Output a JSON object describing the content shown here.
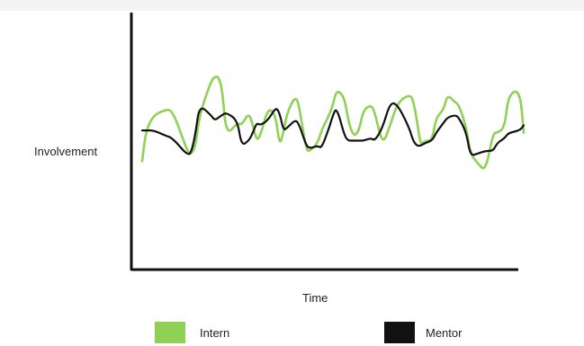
{
  "chart_data": {
    "type": "line",
    "title": "",
    "xlabel": "Time",
    "ylabel": "Involvement",
    "xlim": [
      0,
      100
    ],
    "ylim": [
      0,
      100
    ],
    "x_ticks": false,
    "y_ticks": false,
    "grid": false,
    "legend_position": "bottom",
    "x": [
      0,
      1,
      3,
      6,
      8,
      12,
      13,
      14,
      15,
      18,
      19,
      20,
      21,
      22,
      25,
      26,
      28,
      29,
      30,
      31,
      33,
      35,
      36,
      37,
      38,
      40,
      41,
      43,
      44,
      46,
      47,
      49,
      50,
      51,
      53,
      54,
      55,
      56,
      57,
      58,
      60,
      61,
      63,
      65,
      67,
      70,
      71,
      72,
      73,
      74,
      76,
      77,
      79,
      80,
      82,
      83,
      85,
      86,
      88,
      90,
      92,
      93,
      95,
      96,
      99,
      100
    ],
    "series": [
      {
        "name": "Intern",
        "color": "#8fd154",
        "values": [
          42,
          54,
          60,
          62,
          62,
          45,
          45,
          48,
          60,
          73,
          75,
          75,
          70,
          52,
          57,
          56,
          61,
          56,
          50,
          52,
          63,
          60,
          48,
          53,
          61,
          67,
          65,
          46,
          46,
          49,
          54,
          60,
          64,
          70,
          67,
          58,
          53,
          52,
          55,
          62,
          64,
          61,
          48,
          56,
          65,
          68,
          66,
          58,
          48,
          50,
          50,
          59,
          62,
          68,
          65,
          64,
          55,
          45,
          41,
          38,
          53,
          53,
          55,
          68,
          70,
          53
        ]
      },
      {
        "name": "Mentor",
        "color": "#111111",
        "values": [
          54,
          54,
          54,
          52,
          51,
          44,
          46,
          53,
          64,
          60,
          58,
          59,
          60,
          61,
          58,
          48,
          50,
          53,
          57,
          56,
          58,
          63,
          61,
          54,
          55,
          58,
          57,
          48,
          47,
          48,
          47,
          55,
          60,
          63,
          52,
          50,
          50,
          50,
          50,
          50,
          51,
          50,
          55,
          65,
          64,
          55,
          50,
          48,
          48,
          49,
          50,
          53,
          57,
          59,
          60,
          59,
          53,
          44,
          45,
          46,
          46,
          49,
          51,
          53,
          54,
          56
        ]
      }
    ]
  }
}
